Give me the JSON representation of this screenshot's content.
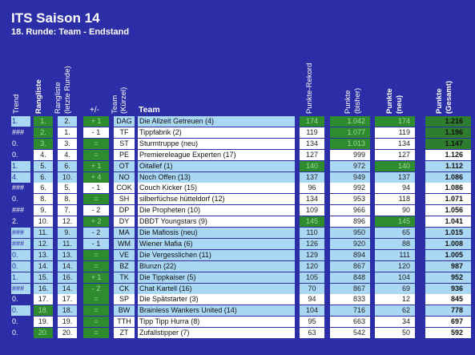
{
  "title": "ITS Saison 14",
  "subtitle": "18. Runde: Team - Endstand",
  "headers": {
    "trend": "Trend",
    "rank": "Rangliste",
    "prev_rank_1": "Rangliste",
    "prev_rank_2": "(letzte Runde)",
    "delta": "+/-",
    "abbr_1": "Team",
    "abbr_2": "(Kürzel)",
    "team": "Team",
    "record": "Punkte-Rekord",
    "prior_1": "Punkte",
    "prior_2": "(bisher)",
    "points_1": "Punkte",
    "points_2": "(neu)",
    "total_1": "Punkte",
    "total_2": "(Gesamt)"
  },
  "rows": [
    {
      "trend": "1.",
      "rank": "1.",
      "prev": "2.",
      "delta": "+ 1",
      "abbr": "DAG",
      "team": "Die Allzeit Getreuen (4)",
      "record": "174",
      "prior": "1.042",
      "points": "174",
      "total": "1.216",
      "hl": true,
      "g_rank": true,
      "g_delta": true,
      "g_rec": true,
      "g_prior": true,
      "g_pts": true,
      "g_tot": true
    },
    {
      "trend": "###",
      "rank": "2.",
      "prev": "1.",
      "delta": "- 1",
      "abbr": "TF",
      "team": "Tippfabrik (2)",
      "record": "119",
      "prior": "1.077",
      "points": "119",
      "total": "1.196",
      "hl": false,
      "g_rank": true,
      "g_delta": false,
      "g_rec": false,
      "g_prior": true,
      "g_pts": false,
      "g_tot": true
    },
    {
      "trend": "0.",
      "rank": "3.",
      "prev": "3.",
      "delta": "=",
      "abbr": "ST",
      "team": "Sturmtruppe (neu)",
      "record": "134",
      "prior": "1.013",
      "points": "134",
      "total": "1.147",
      "hl": false,
      "g_rank": true,
      "g_delta": true,
      "g_rec": false,
      "g_prior": true,
      "g_pts": false,
      "g_tot": true
    },
    {
      "trend": "0.",
      "rank": "4.",
      "prev": "4.",
      "delta": "=",
      "abbr": "PE",
      "team": "Premiereleague Experten (17)",
      "record": "127",
      "prior": "999",
      "points": "127",
      "total": "1.126",
      "hl": false,
      "g_rank": false,
      "g_delta": true,
      "g_rec": false,
      "g_prior": false,
      "g_pts": false,
      "g_tot": false
    },
    {
      "trend": "1.",
      "rank": "5.",
      "prev": "6.",
      "delta": "+ 1",
      "abbr": "OT",
      "team": "Oitallef (1)",
      "record": "140",
      "prior": "972",
      "points": "140",
      "total": "1.112",
      "hl": true,
      "g_rank": false,
      "g_delta": true,
      "g_rec": true,
      "g_prior": false,
      "g_pts": true,
      "g_tot": false
    },
    {
      "trend": "4.",
      "rank": "6.",
      "prev": "10.",
      "delta": "+ 4",
      "abbr": "NO",
      "team": "Noch Offen (13)",
      "record": "137",
      "prior": "949",
      "points": "137",
      "total": "1.086",
      "hl": true,
      "g_rank": false,
      "g_delta": true,
      "g_rec": false,
      "g_prior": false,
      "g_pts": false,
      "g_tot": false
    },
    {
      "trend": "###",
      "rank": "6.",
      "prev": "5.",
      "delta": "- 1",
      "abbr": "COK",
      "team": "Couch Kicker (15)",
      "record": "96",
      "prior": "992",
      "points": "94",
      "total": "1.086",
      "hl": false,
      "g_rank": false,
      "g_delta": false,
      "g_rec": false,
      "g_prior": false,
      "g_pts": false,
      "g_tot": false
    },
    {
      "trend": "0.",
      "rank": "8.",
      "prev": "8.",
      "delta": "=",
      "abbr": "SH",
      "team": "silberfüchse hütteldorf (12)",
      "record": "134",
      "prior": "953",
      "points": "118",
      "total": "1.071",
      "hl": false,
      "g_rank": false,
      "g_delta": true,
      "g_rec": false,
      "g_prior": false,
      "g_pts": false,
      "g_tot": false
    },
    {
      "trend": "###",
      "rank": "9.",
      "prev": "7.",
      "delta": "- 2",
      "abbr": "DP",
      "team": "Die Propheten (10)",
      "record": "109",
      "prior": "966",
      "points": "90",
      "total": "1.056",
      "hl": false,
      "g_rank": false,
      "g_delta": false,
      "g_rec": false,
      "g_prior": false,
      "g_pts": false,
      "g_tot": false
    },
    {
      "trend": "2.",
      "rank": "10.",
      "prev": "12.",
      "delta": "+ 2",
      "abbr": "DY",
      "team": "DBDT Youngstars (9)",
      "record": "145",
      "prior": "896",
      "points": "145",
      "total": "1.041",
      "hl": false,
      "g_rank": false,
      "g_delta": true,
      "g_rec": true,
      "g_prior": false,
      "g_pts": true,
      "g_tot": false
    },
    {
      "trend": "###",
      "rank": "11.",
      "prev": "9.",
      "delta": "- 2",
      "abbr": "MA",
      "team": "Die Mafiosis (neu)",
      "record": "110",
      "prior": "950",
      "points": "65",
      "total": "1.015",
      "hl": true,
      "g_rank": false,
      "g_delta": false,
      "g_rec": false,
      "g_prior": false,
      "g_pts": false,
      "g_tot": false
    },
    {
      "trend": "###",
      "rank": "12.",
      "prev": "11.",
      "delta": "- 1",
      "abbr": "WM",
      "team": "Wiener Mafia (6)",
      "record": "126",
      "prior": "920",
      "points": "88",
      "total": "1.008",
      "hl": true,
      "g_rank": false,
      "g_delta": false,
      "g_rec": false,
      "g_prior": false,
      "g_pts": false,
      "g_tot": false
    },
    {
      "trend": "0.",
      "rank": "13.",
      "prev": "13.",
      "delta": "=",
      "abbr": "VE",
      "team": "Die Vergesslichen (11)",
      "record": "129",
      "prior": "894",
      "points": "111",
      "total": "1.005",
      "hl": true,
      "g_rank": false,
      "g_delta": true,
      "g_rec": false,
      "g_prior": false,
      "g_pts": false,
      "g_tot": false
    },
    {
      "trend": "0.",
      "rank": "14.",
      "prev": "14.",
      "delta": "=",
      "abbr": "BZ",
      "team": "Blunzn (22)",
      "record": "120",
      "prior": "867",
      "points": "120",
      "total": "987",
      "hl": true,
      "g_rank": false,
      "g_delta": true,
      "g_rec": false,
      "g_prior": false,
      "g_pts": false,
      "g_tot": false
    },
    {
      "trend": "1.",
      "rank": "15.",
      "prev": "16.",
      "delta": "+ 1",
      "abbr": "TK",
      "team": "Die Tippkaiser (5)",
      "record": "105",
      "prior": "848",
      "points": "104",
      "total": "952",
      "hl": true,
      "g_rank": false,
      "g_delta": true,
      "g_rec": false,
      "g_prior": false,
      "g_pts": false,
      "g_tot": false
    },
    {
      "trend": "###",
      "rank": "16.",
      "prev": "14.",
      "delta": "- 2",
      "abbr": "CK",
      "team": "Chat Kartell (16)",
      "record": "70",
      "prior": "867",
      "points": "69",
      "total": "936",
      "hl": true,
      "g_rank": false,
      "g_delta": true,
      "g_rec": false,
      "g_prior": false,
      "g_pts": false,
      "g_tot": false
    },
    {
      "trend": "0.",
      "rank": "17.",
      "prev": "17.",
      "delta": "=",
      "abbr": "SP",
      "team": "Die Spätstarter (3)",
      "record": "94",
      "prior": "833",
      "points": "12",
      "total": "845",
      "hl": false,
      "g_rank": false,
      "g_delta": true,
      "g_rec": false,
      "g_prior": false,
      "g_pts": false,
      "g_tot": false
    },
    {
      "trend": "0.",
      "rank": "18.",
      "prev": "18.",
      "delta": "=",
      "abbr": "BW",
      "team": "Brainless Wankers United (14)",
      "record": "104",
      "prior": "716",
      "points": "62",
      "total": "778",
      "hl": true,
      "g_rank": true,
      "g_delta": true,
      "g_rec": false,
      "g_prior": false,
      "g_pts": false,
      "g_tot": false
    },
    {
      "trend": "0.",
      "rank": "19.",
      "prev": "19.",
      "delta": "=",
      "abbr": "TTH",
      "team": "Tipp Tipp Hurra (8)",
      "record": "95",
      "prior": "663",
      "points": "34",
      "total": "697",
      "hl": false,
      "g_rank": false,
      "g_delta": true,
      "g_rec": false,
      "g_prior": false,
      "g_pts": false,
      "g_tot": false
    },
    {
      "trend": "0.",
      "rank": "20.",
      "prev": "20.",
      "delta": "=",
      "abbr": "ZT",
      "team": "Zufallstipper (7)",
      "record": "63",
      "prior": "542",
      "points": "50",
      "total": "592",
      "hl": false,
      "g_rank": true,
      "g_delta": true,
      "g_rec": false,
      "g_prior": false,
      "g_pts": false,
      "g_tot": false
    }
  ]
}
